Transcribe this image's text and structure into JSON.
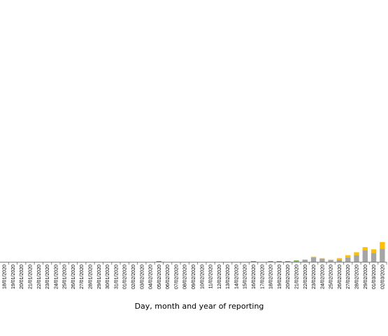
{
  "chart_data": {
    "type": "bar",
    "stacked": true,
    "xlabel": "Day, month and year of reporting",
    "ylabel": "",
    "title": "",
    "legend": "none",
    "grid": false,
    "categories": [
      "18/01/2020",
      "19/01/2020",
      "20/01/2020",
      "21/01/2020",
      "22/01/2020",
      "23/01/2020",
      "24/01/2020",
      "25/01/2020",
      "26/01/2020",
      "27/01/2020",
      "28/01/2020",
      "29/01/2020",
      "30/01/2020",
      "31/01/2020",
      "01/02/2020",
      "02/02/2020",
      "03/02/2020",
      "04/02/2020",
      "05/02/2020",
      "06/02/2020",
      "07/02/2020",
      "08/02/2020",
      "09/02/2020",
      "10/02/2020",
      "11/02/2020",
      "12/02/2020",
      "13/02/2020",
      "14/02/2020",
      "15/02/2020",
      "16/02/2020",
      "17/02/2020",
      "18/02/2020",
      "19/02/2020",
      "20/02/2020",
      "21/02/2020",
      "22/02/2020",
      "23/02/2020",
      "24/02/2020",
      "25/02/2020",
      "26/02/2020",
      "27/02/2020",
      "28/02/2020",
      "29/02/2020",
      "01/03/2020",
      "02/03/2020"
    ],
    "ylim": [
      0,
      300
    ],
    "series": [
      {
        "color": "#a5a5a5",
        "values": [
          0,
          0,
          0,
          0,
          0,
          0,
          0,
          0,
          0,
          0,
          0,
          0,
          0,
          0,
          0,
          0,
          0,
          0,
          0,
          0,
          0,
          0,
          0,
          0,
          0,
          0,
          0,
          0,
          0,
          0,
          0,
          0,
          0,
          0,
          1,
          3,
          6,
          4,
          2,
          3,
          6,
          9,
          16,
          12,
          18
        ]
      },
      {
        "color": "#ffc000",
        "values": [
          0,
          0,
          0,
          0,
          0,
          0,
          0,
          0,
          0,
          0,
          0,
          0,
          0,
          0,
          0,
          0,
          0,
          0,
          0,
          0,
          0,
          0,
          0,
          0,
          0,
          0,
          0,
          0,
          0,
          0,
          0,
          0,
          0,
          0,
          0,
          0,
          1,
          1,
          1,
          2,
          3,
          4,
          4,
          5,
          9
        ]
      },
      {
        "color": "#70ad47",
        "values": [
          0,
          0,
          0,
          0,
          0,
          0,
          0,
          0,
          0,
          0,
          0,
          0,
          0,
          0,
          0,
          0,
          0,
          0,
          1,
          0,
          0,
          0,
          0,
          0,
          0,
          0,
          0,
          0,
          0,
          1,
          0,
          1,
          1,
          1,
          1,
          0,
          0,
          0,
          0,
          0,
          0,
          0,
          0,
          0,
          0
        ]
      }
    ],
    "axis_color": "#808080"
  }
}
